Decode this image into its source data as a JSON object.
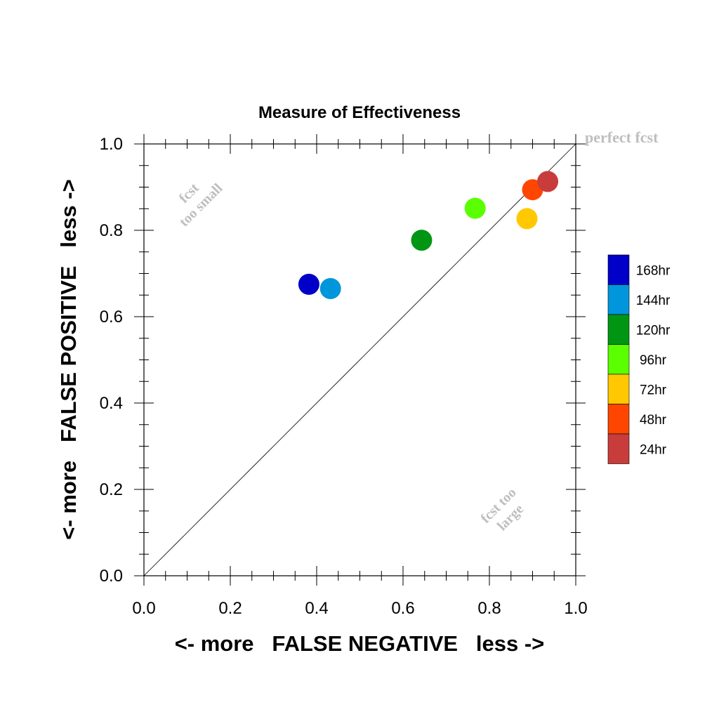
{
  "chart_data": {
    "type": "scatter",
    "title": "Measure of Effectiveness",
    "xlabel": "<- more   FALSE NEGATIVE   less ->",
    "ylabel": "<- more   FALSE POSITIVE   less ->",
    "xlim": [
      0,
      1
    ],
    "ylim": [
      0,
      1
    ],
    "x_ticks": [
      "0.0",
      "0.2",
      "0.4",
      "0.6",
      "0.8",
      "1.0"
    ],
    "y_ticks": [
      "0.0",
      "0.2",
      "0.4",
      "0.6",
      "0.8",
      "1.0"
    ],
    "grid": false,
    "diagonal_line": true,
    "legend_position": "right",
    "points": [
      {
        "name": "168hr",
        "x": 0.382,
        "y": 0.675,
        "color": "#0000c8"
      },
      {
        "name": "144hr",
        "x": 0.432,
        "y": 0.665,
        "color": "#0096dc"
      },
      {
        "name": "120hr",
        "x": 0.643,
        "y": 0.777,
        "color": "#009614"
      },
      {
        "name": "96hr",
        "x": 0.767,
        "y": 0.851,
        "color": "#5aff00"
      },
      {
        "name": "72hr",
        "x": 0.887,
        "y": 0.827,
        "color": "#ffc800"
      },
      {
        "name": "48hr",
        "x": 0.9,
        "y": 0.894,
        "color": "#ff4600"
      },
      {
        "name": "24hr",
        "x": 0.935,
        "y": 0.913,
        "color": "#c83c3c"
      }
    ],
    "legend": [
      {
        "label": "168hr",
        "color": "#0000c8"
      },
      {
        "label": "144hr",
        "color": "#0096dc"
      },
      {
        "label": "120hr",
        "color": "#009614"
      },
      {
        "label": "96hr",
        "color": "#5aff00"
      },
      {
        "label": "72hr",
        "color": "#ffc800"
      },
      {
        "label": "48hr",
        "color": "#ff4600"
      },
      {
        "label": "24hr",
        "color": "#c83c3c"
      }
    ],
    "annotations": {
      "perfect": "perfect fcst",
      "too_small_line1": "fcst",
      "too_small_line2": "too small",
      "too_large_line1": "fcst too",
      "too_large_line2": "large"
    },
    "annotation_color": "#bebebe"
  }
}
